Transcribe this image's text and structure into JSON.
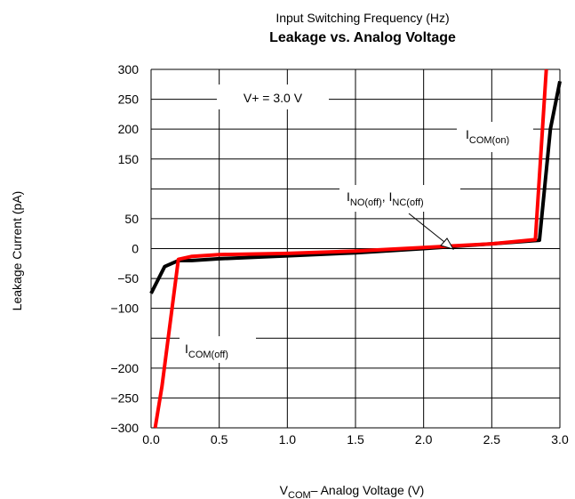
{
  "chart_data": {
    "type": "line",
    "supertitle": "Input Switching Frequency (Hz)",
    "title": "Leakage vs. Analog Voltage",
    "xlabel": {
      "main": "V",
      "sub": "COM",
      "rest": "– Analog Voltage (V)"
    },
    "ylabel": "Leakage Current (pA)",
    "xlim": [
      0.0,
      3.0
    ],
    "x_ticks": [
      "0.0",
      "0.5",
      "1.0",
      "1.5",
      "2.0",
      "2.5",
      "3.0"
    ],
    "y_ticks": [
      "300",
      "250",
      "200",
      "150",
      "",
      "50",
      "0",
      "−50",
      "−100",
      "",
      "−200",
      "−250",
      "−300"
    ],
    "grid": true,
    "annotations": {
      "supply": "V+ = 3.0 V",
      "com_on": {
        "main": "I",
        "sub": "COM(on)"
      },
      "no_nc_off": {
        "a_main": "I",
        "a_sub": "NO(off)",
        "sep": ", ",
        "b_main": "I",
        "b_sub": "NC(off)"
      },
      "com_off": {
        "main": "I",
        "sub": "COM(off)"
      }
    },
    "series": [
      {
        "color": "#000000",
        "points": [
          [
            0.0,
            -75
          ],
          [
            0.1,
            -30
          ],
          [
            0.2,
            -20
          ],
          [
            0.3,
            -20
          ],
          [
            0.5,
            -17
          ],
          [
            1.0,
            -12
          ],
          [
            1.5,
            -7
          ],
          [
            2.0,
            0
          ],
          [
            2.5,
            8
          ],
          [
            2.85,
            14
          ],
          [
            2.93,
            200
          ],
          [
            3.0,
            280
          ]
        ]
      },
      {
        "color": "#ff0000",
        "points": [
          [
            0.03,
            -300
          ],
          [
            0.08,
            -230
          ],
          [
            0.2,
            -18
          ],
          [
            0.3,
            -13
          ],
          [
            0.5,
            -10
          ],
          [
            1.0,
            -8
          ],
          [
            1.5,
            -4
          ],
          [
            2.0,
            2
          ],
          [
            2.5,
            8
          ],
          [
            2.82,
            15
          ],
          [
            2.9,
            300
          ]
        ]
      }
    ]
  }
}
